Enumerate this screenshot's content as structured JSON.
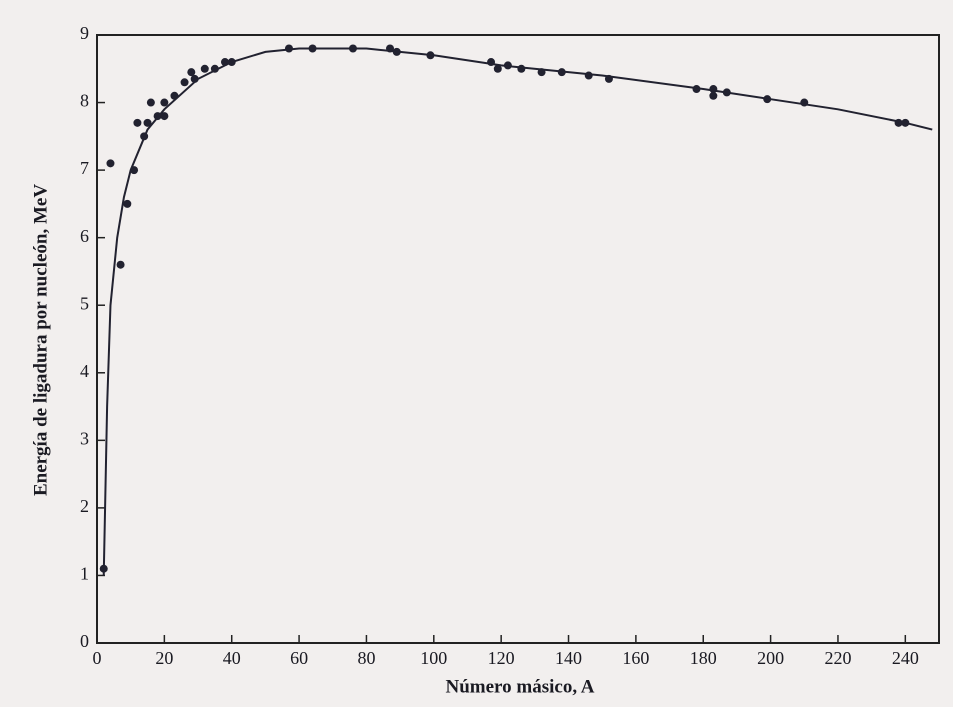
{
  "chart_data": {
    "type": "scatter",
    "xlabel": "Número másico, A",
    "ylabel": "Energía de ligadura por nucleón, MeV",
    "xlim": [
      0,
      250
    ],
    "ylim": [
      0,
      9
    ],
    "xticks": [
      0,
      20,
      40,
      60,
      80,
      100,
      120,
      140,
      160,
      180,
      200,
      220,
      240
    ],
    "yticks": [
      0,
      1,
      2,
      3,
      4,
      5,
      6,
      7,
      8,
      9
    ],
    "series": [
      {
        "type": "scatter",
        "color": "#222230",
        "x": [
          2,
          4,
          7,
          9,
          11,
          12,
          14,
          15,
          16,
          18,
          20,
          20,
          23,
          26,
          28,
          29,
          32,
          35,
          38,
          40,
          57,
          64,
          76,
          87,
          89,
          99,
          117,
          119,
          122,
          126,
          132,
          138,
          146,
          152,
          178,
          183,
          183,
          187,
          199,
          210,
          238,
          240
        ],
        "values": [
          1.1,
          7.1,
          5.6,
          6.5,
          7.0,
          7.7,
          7.5,
          7.7,
          8.0,
          7.8,
          7.8,
          8.0,
          8.1,
          8.3,
          8.45,
          8.35,
          8.5,
          8.5,
          8.6,
          8.6,
          8.8,
          8.8,
          8.8,
          8.8,
          8.75,
          8.7,
          8.6,
          8.5,
          8.55,
          8.5,
          8.45,
          8.45,
          8.4,
          8.35,
          8.2,
          8.2,
          8.1,
          8.15,
          8.05,
          8.0,
          7.7,
          7.7
        ]
      },
      {
        "type": "line",
        "color": "#222230",
        "x": [
          2,
          3,
          4,
          6,
          8,
          10,
          15,
          20,
          30,
          40,
          50,
          60,
          70,
          80,
          100,
          120,
          150,
          180,
          200,
          220,
          240,
          248
        ],
        "values": [
          1.0,
          3.5,
          5.0,
          6.0,
          6.6,
          7.0,
          7.6,
          7.9,
          8.35,
          8.6,
          8.75,
          8.8,
          8.8,
          8.8,
          8.7,
          8.55,
          8.4,
          8.2,
          8.05,
          7.9,
          7.7,
          7.6
        ]
      }
    ]
  }
}
